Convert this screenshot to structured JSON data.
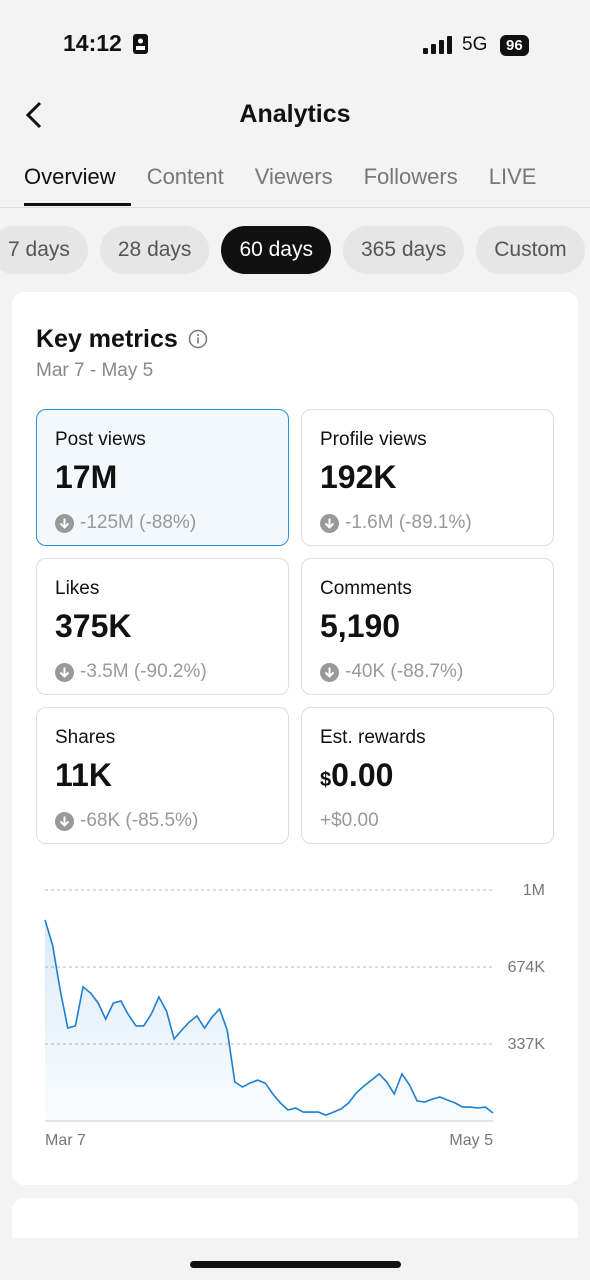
{
  "status_bar": {
    "time": "14:12",
    "network": "5G",
    "battery": "96"
  },
  "header": {
    "title": "Analytics"
  },
  "tabs": [
    "Overview",
    "Content",
    "Viewers",
    "Followers",
    "LIVE"
  ],
  "periods": [
    "7 days",
    "28 days",
    "60 days",
    "365 days",
    "Custom"
  ],
  "key_metrics": {
    "title": "Key metrics",
    "date_range": "Mar 7 - May 5",
    "cards": [
      {
        "label": "Post views",
        "value": "17M",
        "change": "-125M (-88%)"
      },
      {
        "label": "Profile views",
        "value": "192K",
        "change": "-1.6M (-89.1%)"
      },
      {
        "label": "Likes",
        "value": "375K",
        "change": "-3.5M (-90.2%)"
      },
      {
        "label": "Comments",
        "value": "5,190",
        "change": "-40K (-88.7%)"
      },
      {
        "label": "Shares",
        "value": "11K",
        "change": "-68K (-85.5%)"
      },
      {
        "label": "Est. rewards",
        "currency": "$",
        "value": "0.00",
        "change": "+$0.00"
      }
    ]
  },
  "chart_data": {
    "type": "line",
    "color": "#1d7fd0",
    "categories": [
      "Mar 7",
      null,
      null,
      null,
      null,
      null,
      null,
      null,
      null,
      null,
      null,
      null,
      null,
      null,
      null,
      null,
      null,
      null,
      null,
      null,
      null,
      null,
      null,
      null,
      null,
      null,
      null,
      null,
      null,
      null,
      null,
      null,
      null,
      null,
      null,
      null,
      null,
      null,
      null,
      null,
      null,
      null,
      null,
      null,
      null,
      null,
      null,
      null,
      null,
      null,
      null,
      null,
      null,
      null,
      null,
      null,
      null,
      null,
      null,
      "May 5"
    ],
    "values": [
      880000,
      770000,
      573000,
      407000,
      416000,
      587000,
      560000,
      516000,
      446000,
      516000,
      525000,
      464000,
      416000,
      416000,
      468000,
      543000,
      481000,
      359000,
      398000,
      433000,
      460000,
      407000,
      455000,
      490000,
      398000,
      171000,
      149000,
      166000,
      179000,
      166000,
      118000,
      79000,
      48000,
      57000,
      39000,
      39000,
      39000,
      26000,
      39000,
      53000,
      79000,
      123000,
      153000,
      179000,
      206000,
      171000,
      118000,
      206000,
      158000,
      88000,
      83000,
      96000,
      105000,
      92000,
      79000,
      61000,
      61000,
      57000,
      61000,
      35000
    ],
    "ylim": [
      0,
      1011000
    ],
    "yticks": [
      {
        "value": 337000,
        "label": "337K"
      },
      {
        "value": 674000,
        "label": "674K"
      },
      {
        "value": 1011000,
        "label": "1M"
      }
    ],
    "grid": true
  }
}
